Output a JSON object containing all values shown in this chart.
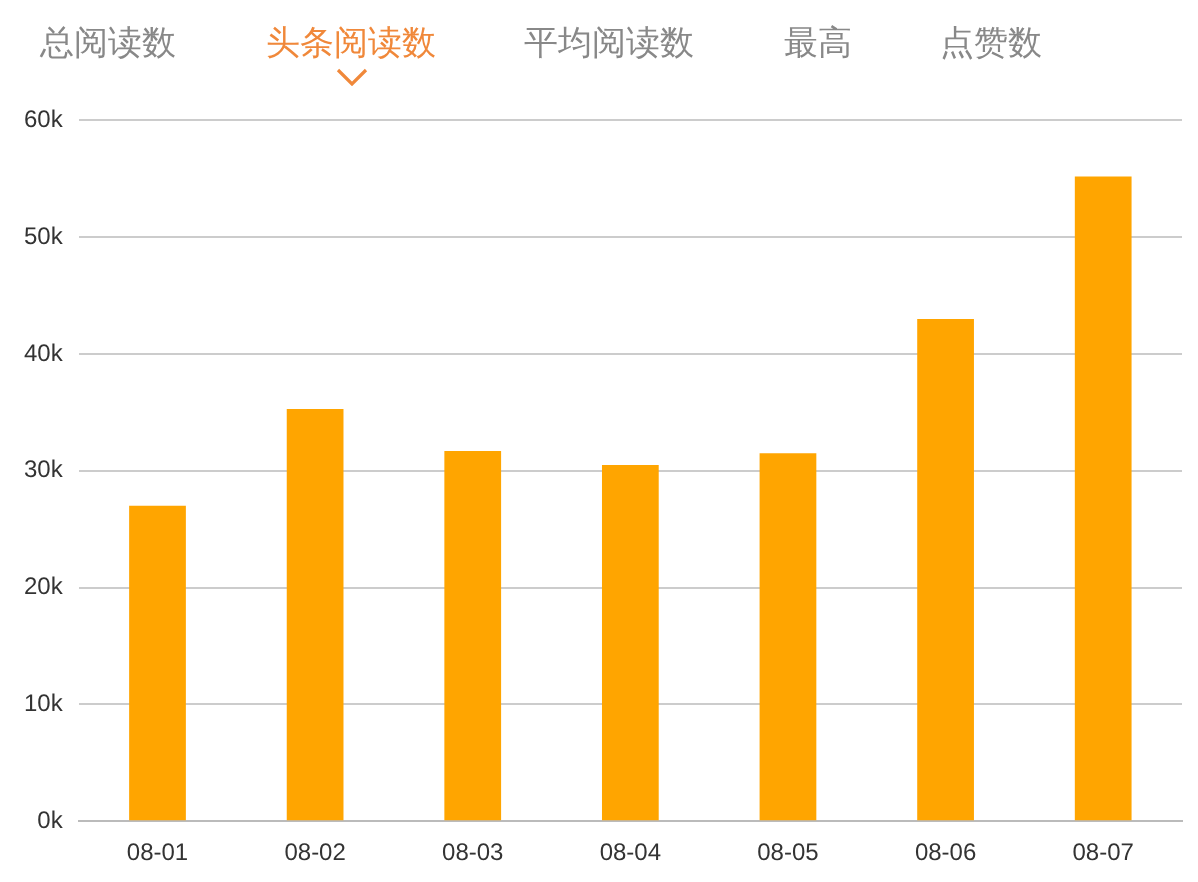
{
  "chart_data": {
    "type": "bar",
    "title": "头条阅读数",
    "annotations": [
      "总阅读数",
      "平均阅读数",
      "最高",
      "点赞数"
    ],
    "categories": [
      "08-01",
      "08-02",
      "08-03",
      "08-04",
      "08-05",
      "08-06",
      "08-07"
    ],
    "values": [
      27000,
      35300,
      31700,
      30500,
      31500,
      43000,
      55200
    ],
    "color": "#ffa500",
    "ylim": [
      0,
      60000
    ],
    "yticks": [
      {
        "value": 0,
        "label": "0k"
      },
      {
        "value": 10000,
        "label": "10k"
      },
      {
        "value": 20000,
        "label": "20k"
      },
      {
        "value": 30000,
        "label": "30k"
      },
      {
        "value": 40000,
        "label": "40k"
      },
      {
        "value": 50000,
        "label": "50k"
      },
      {
        "value": 60000,
        "label": "60k"
      }
    ],
    "grid": "y",
    "legend": false
  }
}
